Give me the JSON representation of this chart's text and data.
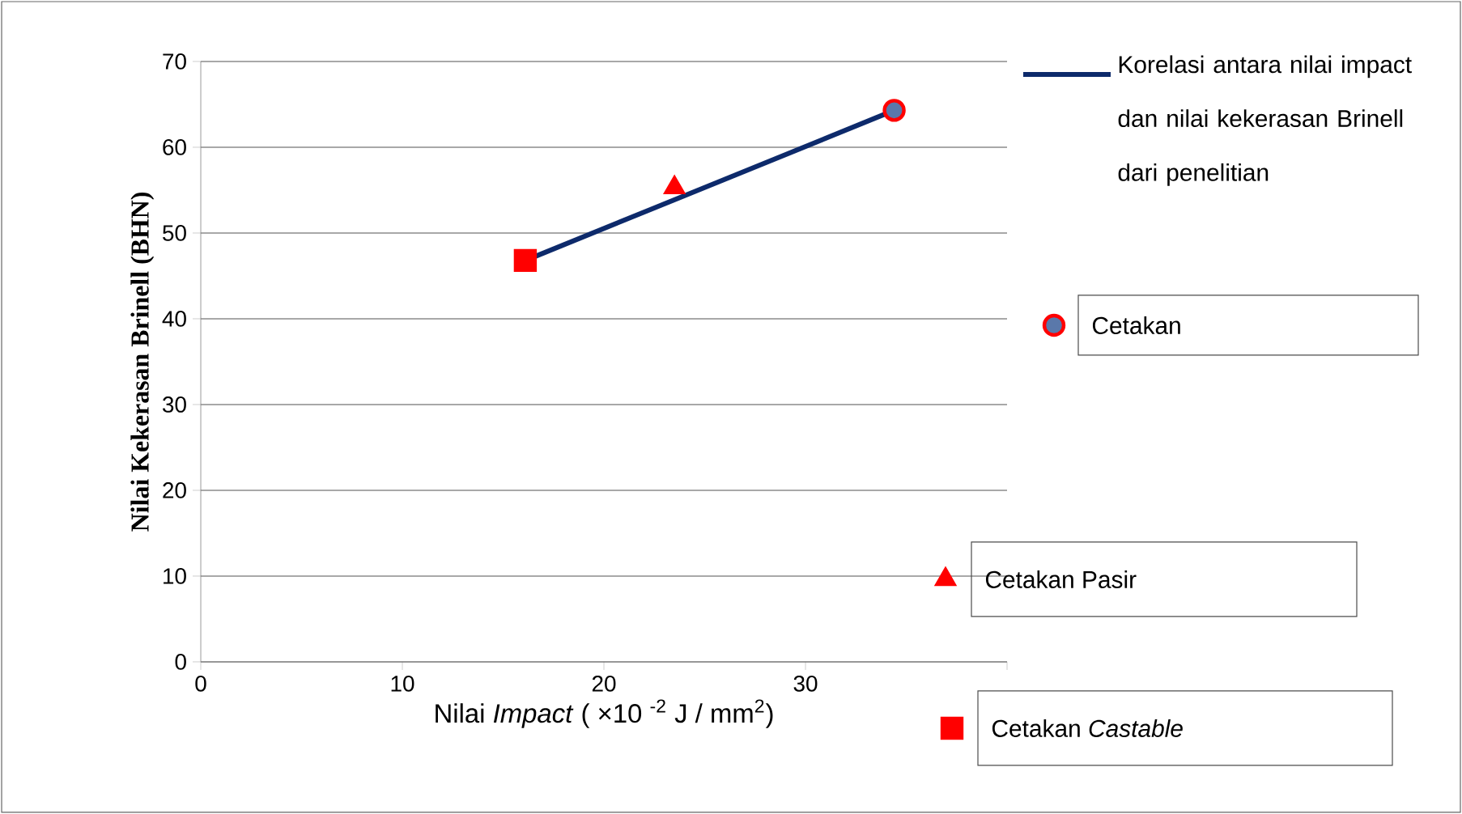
{
  "chart_data": {
    "type": "scatter",
    "xlabel": "Nilai *Impact* ( ×10 $^{-2}$ J / mm$^{2}$)",
    "ylabel": "Nilai Kekerasan Brinell (BHN)",
    "xlim": [
      0,
      40
    ],
    "xticks": [
      0,
      10,
      20,
      30,
      {
        "value": 40,
        "label": null
      }
    ],
    "ylim": [
      0,
      70
    ],
    "yticks": [
      0,
      10,
      20,
      30,
      40,
      50,
      60,
      70
    ],
    "grid": "y",
    "legend": "right",
    "series": [
      {
        "type": "line",
        "name": "Korelasi antara nilai impact dan nilai kekerasan Brinell dari penelitian",
        "color": "#0d2a6b",
        "marker": "none",
        "x": [
          16.1,
          34.4
        ],
        "values": [
          46.8,
          64.3
        ]
      },
      {
        "type": "scatter",
        "name": "Cetakan",
        "color": "#ff0000",
        "marker": "circle",
        "x": [
          34.4
        ],
        "values": [
          64.3
        ]
      },
      {
        "type": "scatter",
        "name": "Cetakan Pasir",
        "color": "#ff0000",
        "marker": "triangle",
        "x": [
          23.5
        ],
        "values": [
          55.3
        ]
      },
      {
        "type": "scatter",
        "name": "Cetakan *Castable*",
        "color": "#ff0000",
        "marker": "square",
        "x": [
          16.1
        ],
        "values": [
          46.8
        ]
      }
    ]
  }
}
